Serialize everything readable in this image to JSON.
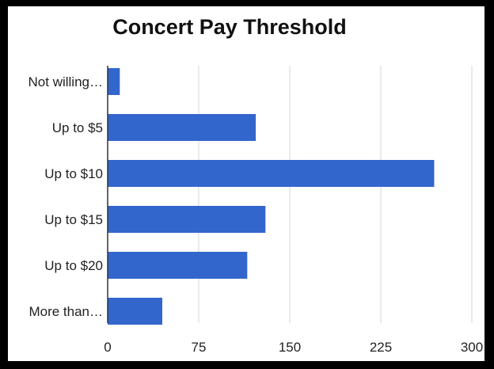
{
  "chart_data": {
    "type": "bar",
    "orientation": "horizontal",
    "title": "Concert Pay Threshold",
    "categories": [
      "Not willing…",
      "Up to $5",
      "Up to $10",
      "Up to $15",
      "Up to $20",
      "More than…"
    ],
    "values": [
      10,
      122,
      269,
      130,
      115,
      45
    ],
    "xlim": [
      0,
      300
    ],
    "x_ticks": [
      0,
      75,
      150,
      225,
      300
    ],
    "x_tick_labels": [
      "0",
      "75",
      "150",
      "225",
      "300"
    ],
    "grid": "vertical",
    "legend": "none",
    "bar_color": "#3366cc",
    "grid_color": "#d4d4d4",
    "axis_color": "#333333"
  }
}
